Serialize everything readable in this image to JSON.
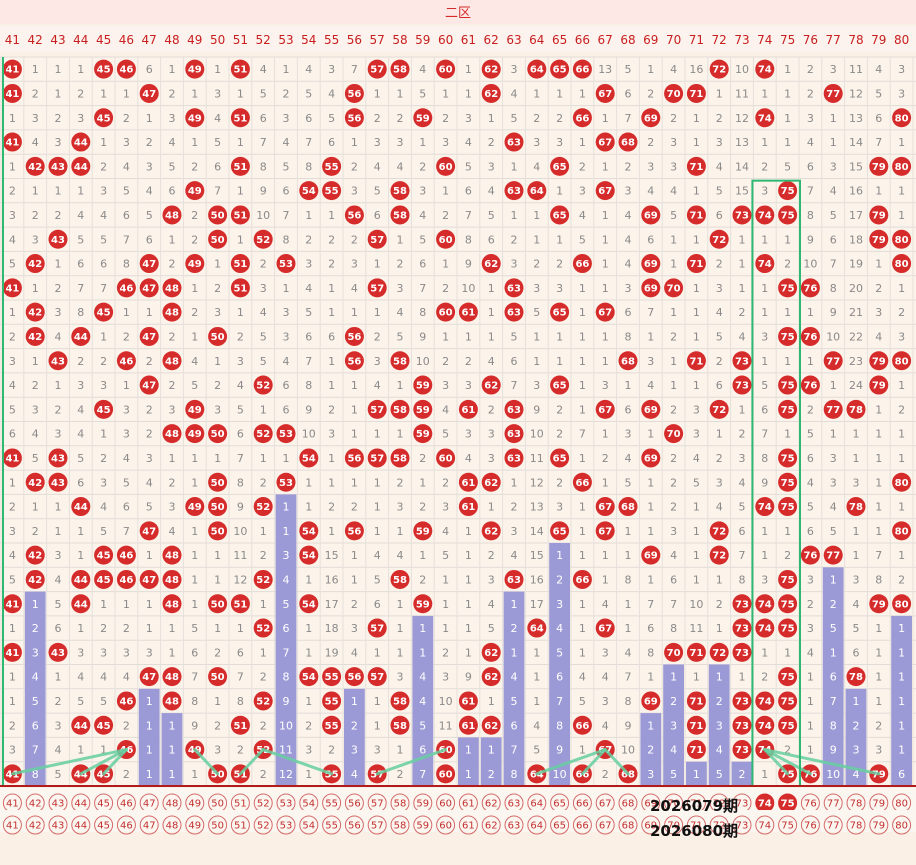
{
  "header": {
    "zone_title": "二区"
  },
  "colors": {
    "ball": "#d62b2b",
    "bar": "#9c9ad6",
    "line": "#66cfa0",
    "frame": "#2fb872",
    "header_bg": "#fde8e6",
    "text_red": "#c81e1e"
  },
  "chart_data": {
    "type": "table",
    "title": "二区",
    "columns": [
      41,
      42,
      43,
      44,
      45,
      46,
      47,
      48,
      49,
      50,
      51,
      52,
      53,
      54,
      55,
      56,
      57,
      58,
      59,
      60,
      61,
      62,
      63,
      64,
      65,
      66,
      67,
      68,
      69,
      70,
      71,
      72,
      73,
      74,
      75,
      76,
      77,
      78,
      79,
      80
    ],
    "draw_periods": [
      [
        41,
        45,
        46,
        49,
        51,
        57,
        58,
        60,
        62,
        64,
        65,
        66,
        72,
        74
      ],
      [
        41,
        47,
        56,
        62,
        67,
        70,
        71,
        77
      ],
      [
        45,
        49,
        51,
        56,
        59,
        66,
        69,
        74,
        80
      ],
      [
        41,
        44,
        63,
        67,
        68
      ],
      [
        42,
        43,
        44,
        51,
        55,
        60,
        65,
        71,
        79,
        80
      ],
      [
        49,
        54,
        55,
        58,
        63,
        64,
        67,
        75
      ],
      [
        48,
        50,
        51,
        56,
        58,
        65,
        69,
        71,
        73,
        74,
        75,
        79
      ],
      [
        43,
        50,
        52,
        57,
        60,
        72,
        79,
        80
      ],
      [
        42,
        47,
        49,
        51,
        53,
        62,
        66,
        69,
        71,
        74,
        80
      ],
      [
        41,
        46,
        47,
        48,
        51,
        57,
        63,
        69,
        70,
        75,
        76
      ],
      [
        42,
        45,
        48,
        60,
        61,
        63,
        65,
        67
      ],
      [
        42,
        44,
        47,
        50,
        56,
        75,
        76
      ],
      [
        43,
        46,
        48,
        56,
        58,
        68,
        71,
        73,
        77,
        79,
        80
      ],
      [
        47,
        52,
        59,
        62,
        65,
        73,
        75,
        76,
        79
      ],
      [
        45,
        49,
        57,
        58,
        59,
        61,
        63,
        67,
        69,
        72,
        75,
        77,
        78
      ],
      [
        48,
        49,
        50,
        52,
        53,
        59,
        63,
        70
      ],
      [
        41,
        43,
        54,
        56,
        57,
        58,
        60,
        63,
        65,
        69,
        75
      ],
      [
        42,
        43,
        50,
        53,
        61,
        62,
        66,
        75,
        80
      ],
      [
        44,
        49,
        50,
        52,
        61,
        67,
        68,
        74,
        75,
        78
      ],
      [
        47,
        50,
        54,
        56,
        59,
        62,
        65,
        67,
        72,
        80
      ],
      [
        42,
        45,
        46,
        48,
        54,
        69,
        72,
        76,
        77
      ],
      [
        42,
        44,
        45,
        46,
        47,
        48,
        52,
        58,
        63,
        66,
        75
      ],
      [
        41,
        44,
        48,
        50,
        51,
        54,
        59,
        73,
        74,
        75,
        79,
        80
      ],
      [
        52,
        57,
        64,
        67,
        73,
        74,
        75
      ],
      [
        41,
        43,
        62,
        70,
        71,
        72,
        73
      ],
      [
        47,
        48,
        50,
        54,
        55,
        56,
        57,
        62,
        75,
        78
      ],
      [
        46,
        48,
        52,
        55,
        58,
        61,
        69,
        71,
        73,
        74,
        75
      ],
      [
        44,
        45,
        51,
        55,
        58,
        61,
        62,
        66,
        71,
        73,
        74,
        75
      ],
      [
        46,
        49,
        52,
        60,
        67,
        71,
        73,
        74
      ],
      [
        41,
        44,
        45,
        50,
        51,
        55,
        57,
        60,
        64,
        66,
        68,
        75,
        76,
        79
      ]
    ],
    "omission_grid": [
      [
        1,
        1,
        1,
        1,
        1,
        1,
        6,
        1,
        1,
        1,
        1,
        4,
        1,
        4,
        3,
        7,
        1,
        1,
        4,
        1,
        1,
        1,
        3,
        1,
        1,
        1,
        13,
        5,
        1,
        4,
        16,
        1,
        10,
        1,
        1,
        2,
        3,
        11,
        4,
        3
      ],
      [
        1,
        2,
        1,
        2,
        1,
        1,
        1,
        2,
        1,
        3,
        1,
        5,
        2,
        5,
        4,
        1,
        1,
        1,
        5,
        1,
        1,
        1,
        4,
        1,
        1,
        1,
        1,
        6,
        2,
        1,
        1,
        1,
        11,
        1,
        1,
        2,
        1,
        12,
        5,
        3
      ],
      [
        1,
        3,
        2,
        3,
        1,
        2,
        1,
        3,
        1,
        4,
        1,
        6,
        3,
        6,
        5,
        1,
        2,
        2,
        1,
        2,
        3,
        1,
        5,
        2,
        2,
        1,
        1,
        7,
        1,
        2,
        1,
        2,
        12,
        1,
        1,
        3,
        1,
        13,
        6,
        1
      ],
      [
        1,
        4,
        3,
        1,
        1,
        3,
        2,
        4,
        1,
        5,
        1,
        7,
        4,
        7,
        6,
        1,
        3,
        3,
        1,
        3,
        4,
        2,
        1,
        3,
        3,
        1,
        1,
        1,
        2,
        3,
        1,
        3,
        13,
        1,
        1,
        4,
        1,
        14,
        7,
        1
      ],
      [
        1,
        1,
        1,
        1,
        2,
        4,
        3,
        5,
        2,
        6,
        1,
        8,
        5,
        8,
        1,
        2,
        4,
        4,
        2,
        1,
        5,
        3,
        1,
        4,
        1,
        2,
        1,
        2,
        3,
        3,
        1,
        4,
        14,
        2,
        5,
        6,
        3,
        15,
        1,
        1
      ],
      [
        2,
        1,
        1,
        1,
        3,
        5,
        4,
        6,
        1,
        7,
        1,
        9,
        6,
        1,
        1,
        3,
        5,
        1,
        3,
        1,
        6,
        4,
        1,
        1,
        1,
        3,
        1,
        3,
        4,
        4,
        1,
        5,
        15,
        3,
        1,
        7,
        4,
        16,
        1,
        1
      ],
      [
        3,
        2,
        2,
        4,
        4,
        6,
        5,
        1,
        2,
        1,
        1,
        10,
        7,
        1,
        1,
        1,
        6,
        1,
        4,
        2,
        7,
        5,
        1,
        1,
        1,
        4,
        1,
        4,
        1,
        5,
        1,
        6,
        1,
        1,
        1,
        8,
        5,
        17,
        1,
        1
      ],
      [
        4,
        3,
        1,
        5,
        5,
        7,
        6,
        1,
        2,
        1,
        1,
        1,
        8,
        2,
        2,
        2,
        1,
        1,
        5,
        1,
        8,
        6,
        2,
        1,
        1,
        5,
        1,
        4,
        6,
        1,
        1,
        1,
        1,
        1,
        1,
        9,
        6,
        18,
        1,
        1
      ],
      [
        5,
        1,
        1,
        6,
        6,
        8,
        1,
        2,
        1,
        1,
        1,
        2,
        1,
        3,
        2,
        3,
        1,
        2,
        6,
        1,
        9,
        1,
        3,
        2,
        2,
        1,
        1,
        4,
        1,
        1,
        1,
        2,
        1,
        1,
        2,
        10,
        7,
        19,
        1,
        1
      ],
      [
        1,
        1,
        2,
        7,
        7,
        1,
        1,
        1,
        1,
        2,
        1,
        3,
        1,
        4,
        1,
        4,
        1,
        3,
        7,
        2,
        10,
        1,
        1,
        3,
        3,
        1,
        1,
        3,
        1,
        1,
        1,
        3,
        1,
        1,
        1,
        1,
        8,
        20,
        2,
        1
      ],
      [
        1,
        1,
        3,
        8,
        1,
        1,
        1,
        1,
        2,
        3,
        1,
        4,
        3,
        5,
        1,
        1,
        1,
        4,
        8,
        1,
        1,
        1,
        1,
        5,
        1,
        1,
        1,
        6,
        7,
        1,
        1,
        4,
        2,
        1,
        1,
        1,
        9,
        21,
        3,
        2
      ],
      [
        2,
        1,
        4,
        1,
        1,
        2,
        1,
        2,
        1,
        1,
        2,
        5,
        3,
        6,
        6,
        1,
        2,
        5,
        9,
        1,
        1,
        1,
        5,
        1,
        1,
        1,
        1,
        8,
        1,
        2,
        1,
        5,
        4,
        3,
        1,
        1,
        10,
        22,
        4,
        3
      ],
      [
        3,
        1,
        1,
        2,
        2,
        1,
        2,
        1,
        4,
        1,
        3,
        5,
        4,
        7,
        1,
        1,
        3,
        1,
        10,
        2,
        2,
        4,
        6,
        1,
        1,
        1,
        1,
        1,
        3,
        1,
        1,
        2,
        1,
        1,
        1,
        1,
        1,
        23,
        1,
        1
      ],
      [
        4,
        2,
        1,
        3,
        3,
        1,
        1,
        2,
        5,
        2,
        4,
        1,
        6,
        8,
        1,
        1,
        4,
        1,
        1,
        3,
        3,
        1,
        7,
        3,
        1,
        1,
        3,
        1,
        4,
        1,
        1,
        6,
        1,
        5,
        1,
        1,
        1,
        24,
        1,
        1
      ],
      [
        5,
        3,
        2,
        4,
        1,
        3,
        2,
        3,
        1,
        3,
        5,
        1,
        6,
        9,
        2,
        1,
        1,
        1,
        1,
        4,
        1,
        2,
        1,
        9,
        2,
        1,
        1,
        6,
        1,
        2,
        3,
        1,
        1,
        6,
        1,
        2,
        1,
        1,
        1,
        2
      ],
      [
        6,
        4,
        3,
        4,
        1,
        3,
        2,
        1,
        1,
        1,
        6,
        1,
        1,
        10,
        3,
        1,
        1,
        1,
        1,
        5,
        3,
        3,
        1,
        10,
        2,
        7,
        1,
        3,
        1,
        1,
        3,
        1,
        2,
        7,
        1,
        5,
        1,
        1,
        1,
        1
      ],
      [
        1,
        5,
        1,
        5,
        2,
        4,
        3,
        1,
        1,
        1,
        7,
        1,
        1,
        1,
        1,
        1,
        1,
        1,
        2,
        1,
        4,
        3,
        1,
        11,
        1,
        1,
        2,
        4,
        1,
        2,
        4,
        2,
        3,
        8,
        1,
        6,
        3,
        1,
        1,
        1
      ],
      [
        1,
        1,
        1,
        6,
        3,
        5,
        4,
        2,
        1,
        1,
        8,
        2,
        1,
        1,
        1,
        1,
        1,
        2,
        1,
        2,
        1,
        1,
        1,
        12,
        2,
        1,
        1,
        5,
        1,
        2,
        5,
        3,
        4,
        9,
        1,
        4,
        3,
        3,
        1,
        1
      ],
      [
        2,
        1,
        1,
        1,
        4,
        6,
        5,
        3,
        1,
        1,
        9,
        1,
        1,
        1,
        2,
        2,
        1,
        3,
        2,
        3,
        1,
        1,
        2,
        13,
        3,
        1,
        1,
        1,
        1,
        2,
        1,
        4,
        5,
        1,
        1,
        5,
        4,
        1,
        1,
        1
      ],
      [
        3,
        2,
        1,
        1,
        5,
        7,
        1,
        4,
        1,
        1,
        10,
        1,
        1,
        1,
        1,
        3,
        1,
        1,
        1,
        4,
        1,
        1,
        3,
        14,
        1,
        1,
        1,
        1,
        1,
        3,
        1,
        1,
        6,
        1,
        1,
        6,
        5,
        1,
        1,
        1
      ],
      [
        4,
        1,
        3,
        1,
        1,
        1,
        1,
        1,
        1,
        1,
        11,
        2,
        3,
        1,
        15,
        1,
        4,
        4,
        1,
        5,
        1,
        2,
        4,
        15,
        1,
        1,
        1,
        1,
        1,
        4,
        1,
        1,
        7,
        1,
        2,
        1,
        1,
        1,
        7,
        1
      ],
      [
        5,
        1,
        4,
        1,
        1,
        1,
        1,
        1,
        1,
        1,
        12,
        1,
        4,
        1,
        16,
        1,
        5,
        1,
        2,
        1,
        1,
        3,
        1,
        16,
        2,
        1,
        1,
        8,
        1,
        6,
        1,
        1,
        8,
        3,
        1,
        3,
        1,
        3,
        8,
        2
      ],
      [
        1,
        1,
        5,
        1,
        1,
        1,
        1,
        1,
        1,
        1,
        1,
        1,
        5,
        1,
        17,
        2,
        6,
        1,
        1,
        1,
        1,
        4,
        1,
        17,
        3,
        1,
        4,
        1,
        7,
        7,
        10,
        2,
        1,
        1,
        1,
        2,
        2,
        4,
        1,
        1
      ],
      [
        1,
        2,
        6,
        1,
        2,
        2,
        1,
        1,
        5,
        1,
        1,
        1,
        6,
        1,
        18,
        3,
        1,
        1,
        1,
        1,
        1,
        5,
        2,
        1,
        4,
        1,
        1,
        1,
        6,
        8,
        11,
        1,
        1,
        1,
        1,
        3,
        5,
        5,
        1,
        1
      ],
      [
        1,
        3,
        1,
        3,
        3,
        3,
        3,
        1,
        6,
        2,
        6,
        1,
        7,
        1,
        19,
        4,
        1,
        1,
        1,
        2,
        1,
        1,
        1,
        1,
        5,
        1,
        3,
        4,
        8,
        1,
        1,
        1,
        1,
        1,
        1,
        4,
        1,
        6,
        1,
        1
      ],
      [
        1,
        4,
        1,
        4,
        4,
        4,
        1,
        1,
        7,
        1,
        7,
        2,
        8,
        1,
        1,
        1,
        1,
        3,
        4,
        3,
        9,
        1,
        4,
        1,
        6,
        4,
        4,
        7,
        1,
        1,
        1,
        1,
        1,
        2,
        2,
        1,
        6,
        1,
        1,
        1
      ],
      [
        1,
        5,
        2,
        5,
        5,
        1,
        1,
        1,
        8,
        1,
        8,
        1,
        9,
        1,
        1,
        1,
        1,
        1,
        4,
        10,
        1,
        1,
        5,
        1,
        7,
        5,
        3,
        8,
        1,
        2,
        1,
        2,
        2,
        1,
        1,
        1,
        7,
        1,
        1,
        1
      ],
      [
        2,
        6,
        3,
        1,
        1,
        2,
        1,
        1,
        9,
        2,
        1,
        2,
        10,
        2,
        1,
        2,
        1,
        1,
        5,
        11,
        1,
        1,
        6,
        4,
        8,
        1,
        4,
        9,
        1,
        3,
        1,
        3,
        1,
        1,
        1,
        1,
        8,
        2,
        2,
        1
      ],
      [
        3,
        7,
        4,
        1,
        1,
        1,
        1,
        1,
        1,
        3,
        2,
        1,
        11,
        3,
        2,
        3,
        3,
        1,
        6,
        1,
        1,
        1,
        7,
        5,
        9,
        1,
        1,
        10,
        2,
        4,
        1,
        4,
        1,
        1,
        2,
        1,
        9,
        3,
        3,
        1
      ],
      [
        1,
        8,
        5,
        1,
        1,
        2,
        1,
        1,
        1,
        1,
        1,
        2,
        12,
        1,
        1,
        4,
        1,
        2,
        7,
        1,
        1,
        2,
        8,
        1,
        10,
        1,
        2,
        1,
        3,
        5,
        1,
        5,
        2,
        1,
        1,
        1,
        10,
        4,
        4,
        6
      ]
    ],
    "shaded_columns": [
      42,
      47,
      48,
      53,
      56,
      59,
      61,
      62,
      63,
      65,
      66,
      69,
      70,
      71,
      72,
      73,
      77,
      78,
      79,
      80
    ],
    "period_labels": [
      "2026079期",
      "2026080期"
    ],
    "forecast_rows": [
      [
        41,
        42,
        43,
        44,
        45,
        46,
        47,
        48,
        49,
        50,
        51,
        52,
        53,
        54,
        55,
        56,
        57,
        58,
        59,
        60,
        61,
        62,
        63,
        64,
        65,
        66,
        67,
        68,
        69,
        70,
        71,
        72,
        73,
        74,
        75,
        76,
        77,
        78,
        79,
        80
      ],
      [
        41,
        42,
        43,
        44,
        45,
        46,
        47,
        48,
        49,
        50,
        51,
        52,
        53,
        54,
        55,
        56,
        57,
        58,
        59,
        60,
        61,
        62,
        63,
        64,
        65,
        66,
        67,
        68,
        69,
        70,
        71,
        72,
        73,
        74,
        75,
        76,
        77,
        78,
        79,
        80
      ]
    ],
    "forecast_highlight": [
      74,
      75
    ]
  }
}
